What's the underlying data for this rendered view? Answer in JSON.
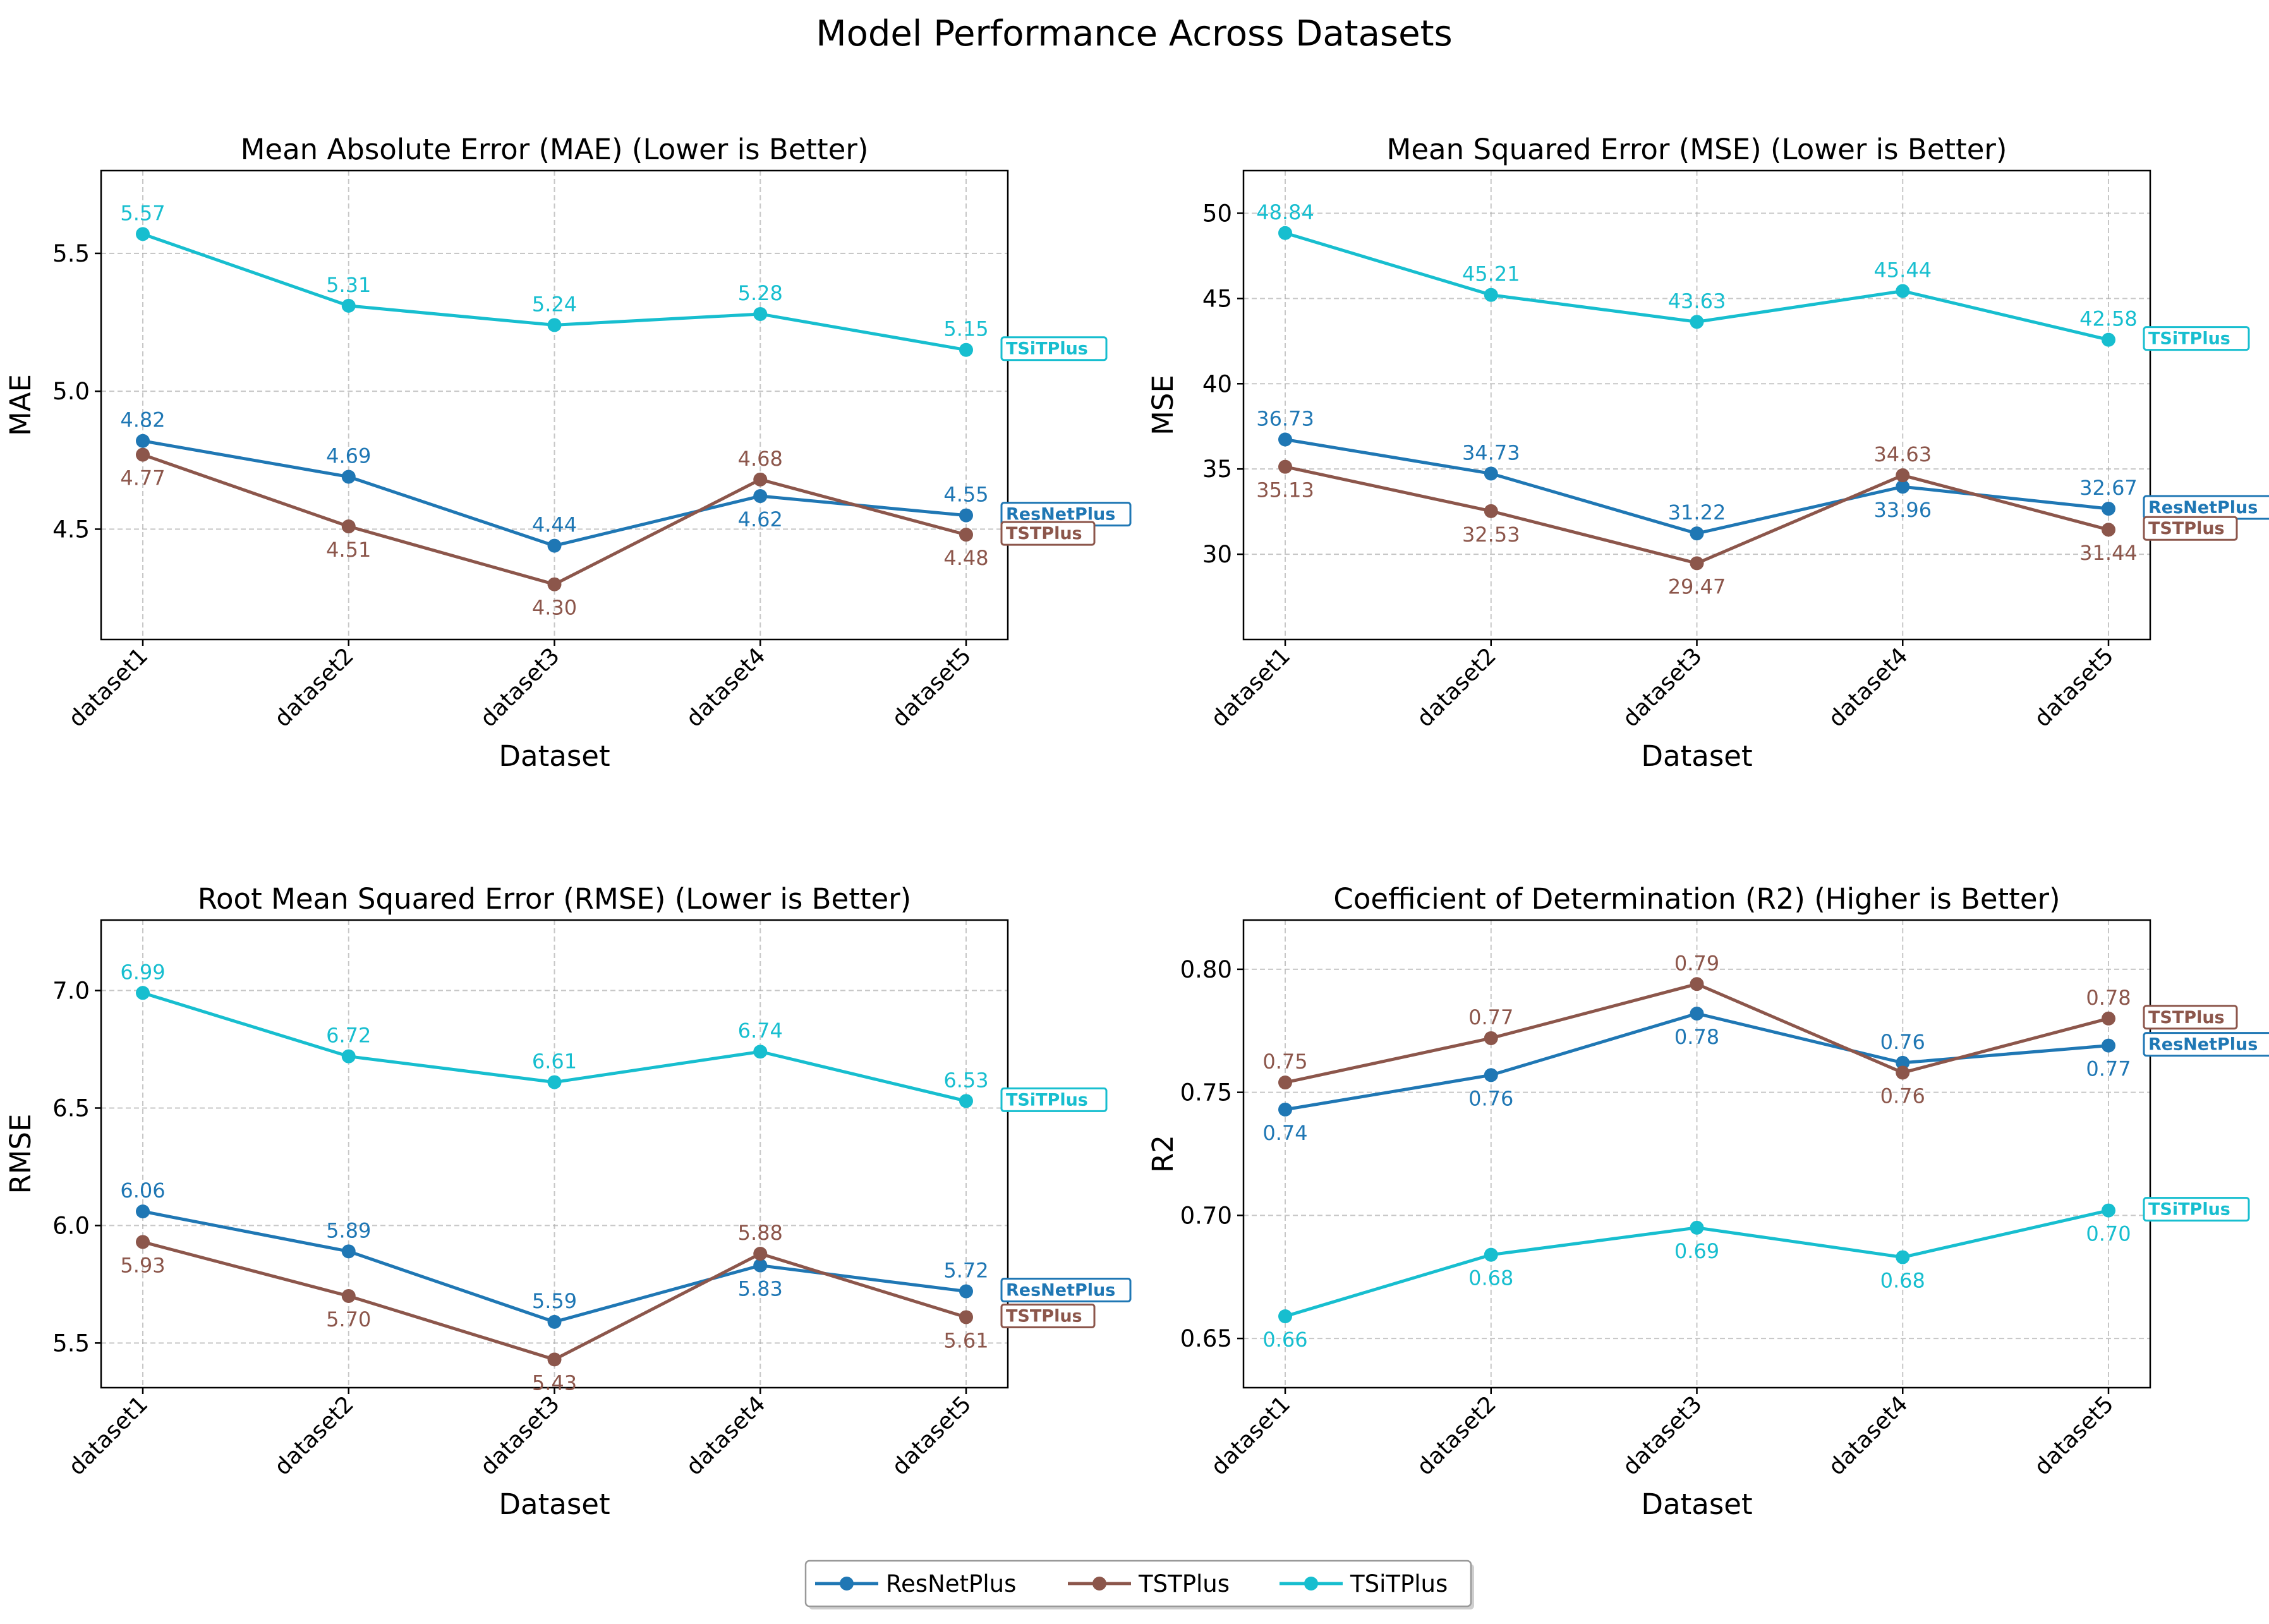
{
  "title": "Model Performance Across Datasets",
  "colors": {
    "ResNetPlus": "#1f77b4",
    "TSTPlus": "#8c564b",
    "TSiTPlus": "#17becf"
  },
  "legend": {
    "placement": "bottom-center",
    "items": [
      "ResNetPlus",
      "TSTPlus",
      "TSiTPlus"
    ]
  },
  "chart_data": [
    {
      "type": "line",
      "title": "Mean Absolute Error (MAE) (Lower is Better)",
      "xlabel": "Dataset",
      "ylabel": "MAE",
      "categories": [
        "dataset1",
        "dataset2",
        "dataset3",
        "dataset4",
        "dataset5"
      ],
      "ylim": [
        4.1,
        5.8
      ],
      "yticks": [
        4.5,
        5.0,
        5.5
      ],
      "ytick_labels": [
        "4.5",
        "5.0",
        "5.5"
      ],
      "grid": true,
      "series": [
        {
          "name": "ResNetPlus",
          "values": [
            4.82,
            4.69,
            4.44,
            4.62,
            4.55
          ],
          "labels": [
            "4.82",
            "4.69",
            "4.44",
            "4.62",
            "4.55"
          ],
          "label_pos": [
            "above",
            "above",
            "above",
            "below",
            "above"
          ]
        },
        {
          "name": "TSTPlus",
          "values": [
            4.77,
            4.51,
            4.3,
            4.68,
            4.48
          ],
          "labels": [
            "4.77",
            "4.51",
            "4.30",
            "4.68",
            "4.48"
          ],
          "label_pos": [
            "below",
            "below",
            "below",
            "above",
            "below"
          ]
        },
        {
          "name": "TSiTPlus",
          "values": [
            5.57,
            5.31,
            5.24,
            5.28,
            5.15
          ],
          "labels": [
            "5.57",
            "5.31",
            "5.24",
            "5.28",
            "5.15"
          ],
          "label_pos": [
            "above",
            "above",
            "above",
            "above",
            "above"
          ]
        }
      ]
    },
    {
      "type": "line",
      "title": "Mean Squared Error (MSE) (Lower is Better)",
      "xlabel": "Dataset",
      "ylabel": "MSE",
      "categories": [
        "dataset1",
        "dataset2",
        "dataset3",
        "dataset4",
        "dataset5"
      ],
      "ylim": [
        25,
        52.5
      ],
      "yticks": [
        30,
        35,
        40,
        45,
        50
      ],
      "ytick_labels": [
        "30",
        "35",
        "40",
        "45",
        "50"
      ],
      "grid": true,
      "series": [
        {
          "name": "ResNetPlus",
          "values": [
            36.73,
            34.73,
            31.22,
            33.96,
            32.67
          ],
          "labels": [
            "36.73",
            "34.73",
            "31.22",
            "33.96",
            "32.67"
          ],
          "label_pos": [
            "above",
            "above",
            "above",
            "below",
            "above"
          ]
        },
        {
          "name": "TSTPlus",
          "values": [
            35.13,
            32.53,
            29.47,
            34.63,
            31.44
          ],
          "labels": [
            "35.13",
            "32.53",
            "29.47",
            "34.63",
            "31.44"
          ],
          "label_pos": [
            "below",
            "below",
            "below",
            "above",
            "below"
          ]
        },
        {
          "name": "TSiTPlus",
          "values": [
            48.84,
            45.21,
            43.63,
            45.44,
            42.58
          ],
          "labels": [
            "48.84",
            "45.21",
            "43.63",
            "45.44",
            "42.58"
          ],
          "label_pos": [
            "above",
            "above",
            "above",
            "above",
            "above"
          ]
        }
      ]
    },
    {
      "type": "line",
      "title": "Root Mean Squared Error (RMSE) (Lower is Better)",
      "xlabel": "Dataset",
      "ylabel": "RMSE",
      "categories": [
        "dataset1",
        "dataset2",
        "dataset3",
        "dataset4",
        "dataset5"
      ],
      "ylim": [
        5.31,
        7.3
      ],
      "yticks": [
        5.5,
        6.0,
        6.5,
        7.0
      ],
      "ytick_labels": [
        "5.5",
        "6.0",
        "6.5",
        "7.0"
      ],
      "grid": true,
      "series": [
        {
          "name": "ResNetPlus",
          "values": [
            6.06,
            5.89,
            5.59,
            5.83,
            5.72
          ],
          "labels": [
            "6.06",
            "5.89",
            "5.59",
            "5.83",
            "5.72"
          ],
          "label_pos": [
            "above",
            "above",
            "above",
            "below",
            "above"
          ]
        },
        {
          "name": "TSTPlus",
          "values": [
            5.93,
            5.7,
            5.43,
            5.88,
            5.61
          ],
          "labels": [
            "5.93",
            "5.70",
            "5.43",
            "5.88",
            "5.61"
          ],
          "label_pos": [
            "below",
            "below",
            "below",
            "above",
            "below"
          ]
        },
        {
          "name": "TSiTPlus",
          "values": [
            6.99,
            6.72,
            6.61,
            6.74,
            6.53
          ],
          "labels": [
            "6.99",
            "6.72",
            "6.61",
            "6.74",
            "6.53"
          ],
          "label_pos": [
            "above",
            "above",
            "above",
            "above",
            "above"
          ]
        }
      ]
    },
    {
      "type": "line",
      "title": "Coefficient of Determination (R2) (Higher is Better)",
      "xlabel": "Dataset",
      "ylabel": "R2",
      "categories": [
        "dataset1",
        "dataset2",
        "dataset3",
        "dataset4",
        "dataset5"
      ],
      "ylim": [
        0.63,
        0.82
      ],
      "yticks": [
        0.65,
        0.7,
        0.75,
        0.8
      ],
      "ytick_labels": [
        "0.65",
        "0.70",
        "0.75",
        "0.80"
      ],
      "grid": true,
      "series": [
        {
          "name": "ResNetPlus",
          "values": [
            0.743,
            0.757,
            0.782,
            0.762,
            0.769
          ],
          "labels": [
            "0.74",
            "0.76",
            "0.78",
            "0.76",
            "0.77"
          ],
          "label_pos": [
            "below",
            "below",
            "below",
            "above",
            "below"
          ]
        },
        {
          "name": "TSTPlus",
          "values": [
            0.754,
            0.772,
            0.794,
            0.758,
            0.78
          ],
          "labels": [
            "0.75",
            "0.77",
            "0.79",
            "0.76",
            "0.78"
          ],
          "label_pos": [
            "above",
            "above",
            "above",
            "below",
            "above"
          ]
        },
        {
          "name": "TSiTPlus",
          "values": [
            0.659,
            0.684,
            0.695,
            0.683,
            0.702
          ],
          "labels": [
            "0.66",
            "0.68",
            "0.69",
            "0.68",
            "0.70"
          ],
          "label_pos": [
            "below",
            "below",
            "below",
            "below",
            "below"
          ]
        }
      ]
    }
  ]
}
